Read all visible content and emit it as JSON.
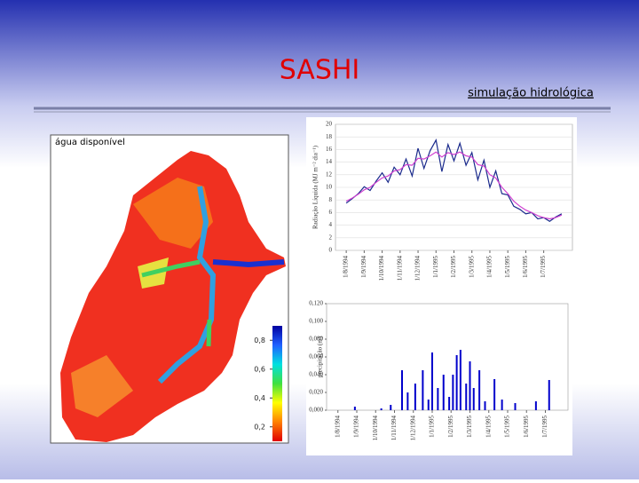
{
  "header": {
    "title": "SASHI",
    "subtitle": "simulação hidrológica"
  },
  "map": {
    "label": "água disponível",
    "colorbar": {
      "ticks": [
        {
          "value": 0.8,
          "label": "0,8"
        },
        {
          "value": 0.6,
          "label": "0,6"
        },
        {
          "value": 0.4,
          "label": "0,4"
        },
        {
          "value": 0.2,
          "label": "0,2"
        }
      ]
    }
  },
  "chart_data": [
    {
      "type": "line",
      "y_label": "Radiação Líquida (MJ m⁻² dia⁻¹)",
      "x": [
        0,
        0.33,
        0.67,
        1,
        1.33,
        1.67,
        2,
        2.33,
        2.67,
        3,
        3.33,
        3.67,
        4,
        4.33,
        4.67,
        5,
        5.33,
        5.67,
        6,
        6.33,
        6.67,
        7,
        7.33,
        7.67,
        8,
        8.33,
        8.67,
        9,
        9.33,
        9.67,
        10,
        10.33,
        10.67,
        11,
        11.33,
        11.67,
        12
      ],
      "series": [
        {
          "color": "#1a2a8c",
          "values": [
            7.5,
            8.2,
            9,
            10.1,
            9.5,
            11,
            12.3,
            10.8,
            13.2,
            12,
            14.5,
            11.8,
            16.2,
            13,
            15.8,
            17.5,
            12.5,
            16.8,
            14.2,
            17,
            13.5,
            15.5,
            11.2,
            14.3,
            10,
            12.6,
            9,
            8.8,
            7,
            6.5,
            5.8,
            6,
            5,
            5.2,
            4.6,
            5.3,
            5.8
          ]
        },
        {
          "color": "#d040d0",
          "values": [
            7.8,
            8.3,
            8.9,
            9.6,
            10,
            10.8,
            11.5,
            11.8,
            12.6,
            12.8,
            13.6,
            13.5,
            14.6,
            14.5,
            15,
            15.6,
            14.8,
            15.5,
            15.2,
            15.6,
            15,
            14.8,
            13.6,
            13.4,
            12,
            11.5,
            10,
            9,
            7.8,
            7,
            6.4,
            6,
            5.5,
            5.2,
            5,
            5.2,
            5.6
          ]
        }
      ],
      "xlim": [
        -0.6,
        12.6
      ],
      "xticks": [
        {
          "value": 0,
          "label": "1/8/1994"
        },
        {
          "value": 1,
          "label": "1/9/1994"
        },
        {
          "value": 2,
          "label": "1/10/1994"
        },
        {
          "value": 3,
          "label": "1/11/1994"
        },
        {
          "value": 4,
          "label": "1/12/1994"
        },
        {
          "value": 5,
          "label": "1/1/1995"
        },
        {
          "value": 6,
          "label": "1/2/1995"
        },
        {
          "value": 7,
          "label": "1/3/1995"
        },
        {
          "value": 8,
          "label": "1/4/1995"
        },
        {
          "value": 9,
          "label": "1/5/1995"
        },
        {
          "value": 10,
          "label": "1/6/1995"
        },
        {
          "value": 11,
          "label": "1/7/1995"
        }
      ],
      "ylim": [
        0,
        20
      ],
      "yticks": [
        0,
        2,
        4,
        6,
        8,
        10,
        12,
        14,
        16,
        18,
        20
      ],
      "grid": true
    },
    {
      "type": "bar",
      "y_label": "precipitação (m)",
      "color": "#0000cc",
      "x": [
        0.9,
        2.3,
        2.8,
        3.4,
        3.7,
        4.1,
        4.5,
        4.8,
        5.0,
        5.3,
        5.6,
        5.9,
        6.1,
        6.3,
        6.5,
        6.8,
        7.0,
        7.2,
        7.5,
        7.8,
        8.3,
        8.7,
        9.4,
        10.5,
        11.2
      ],
      "values": [
        0.004,
        0.002,
        0.006,
        0.045,
        0.02,
        0.03,
        0.045,
        0.012,
        0.065,
        0.025,
        0.04,
        0.015,
        0.04,
        0.062,
        0.068,
        0.03,
        0.055,
        0.025,
        0.045,
        0.01,
        0.035,
        0.012,
        0.008,
        0.01,
        0.034
      ],
      "xlim": [
        -0.6,
        12.2
      ],
      "xticks": [
        {
          "value": 0,
          "label": "1/8/1994"
        },
        {
          "value": 1,
          "label": "1/9/1994"
        },
        {
          "value": 2,
          "label": "1/10/1994"
        },
        {
          "value": 3,
          "label": "1/11/1994"
        },
        {
          "value": 4,
          "label": "1/12/1994"
        },
        {
          "value": 5,
          "label": "1/1/1995"
        },
        {
          "value": 6,
          "label": "1/2/1995"
        },
        {
          "value": 7,
          "label": "1/3/1995"
        },
        {
          "value": 8,
          "label": "1/4/1995"
        },
        {
          "value": 9,
          "label": "1/5/1995"
        },
        {
          "value": 10,
          "label": "1/6/1995"
        },
        {
          "value": 11,
          "label": "1/7/1995"
        }
      ],
      "ylim": [
        0,
        0.12
      ],
      "yticks": [
        {
          "value": 0,
          "label": "0,000"
        },
        {
          "value": 0.02,
          "label": "0,020"
        },
        {
          "value": 0.04,
          "label": "0,040"
        },
        {
          "value": 0.06,
          "label": "0,060"
        },
        {
          "value": 0.08,
          "label": "0,080"
        },
        {
          "value": 0.1,
          "label": "0,100"
        },
        {
          "value": 0.12,
          "label": "0,120"
        }
      ],
      "grid": false
    }
  ]
}
